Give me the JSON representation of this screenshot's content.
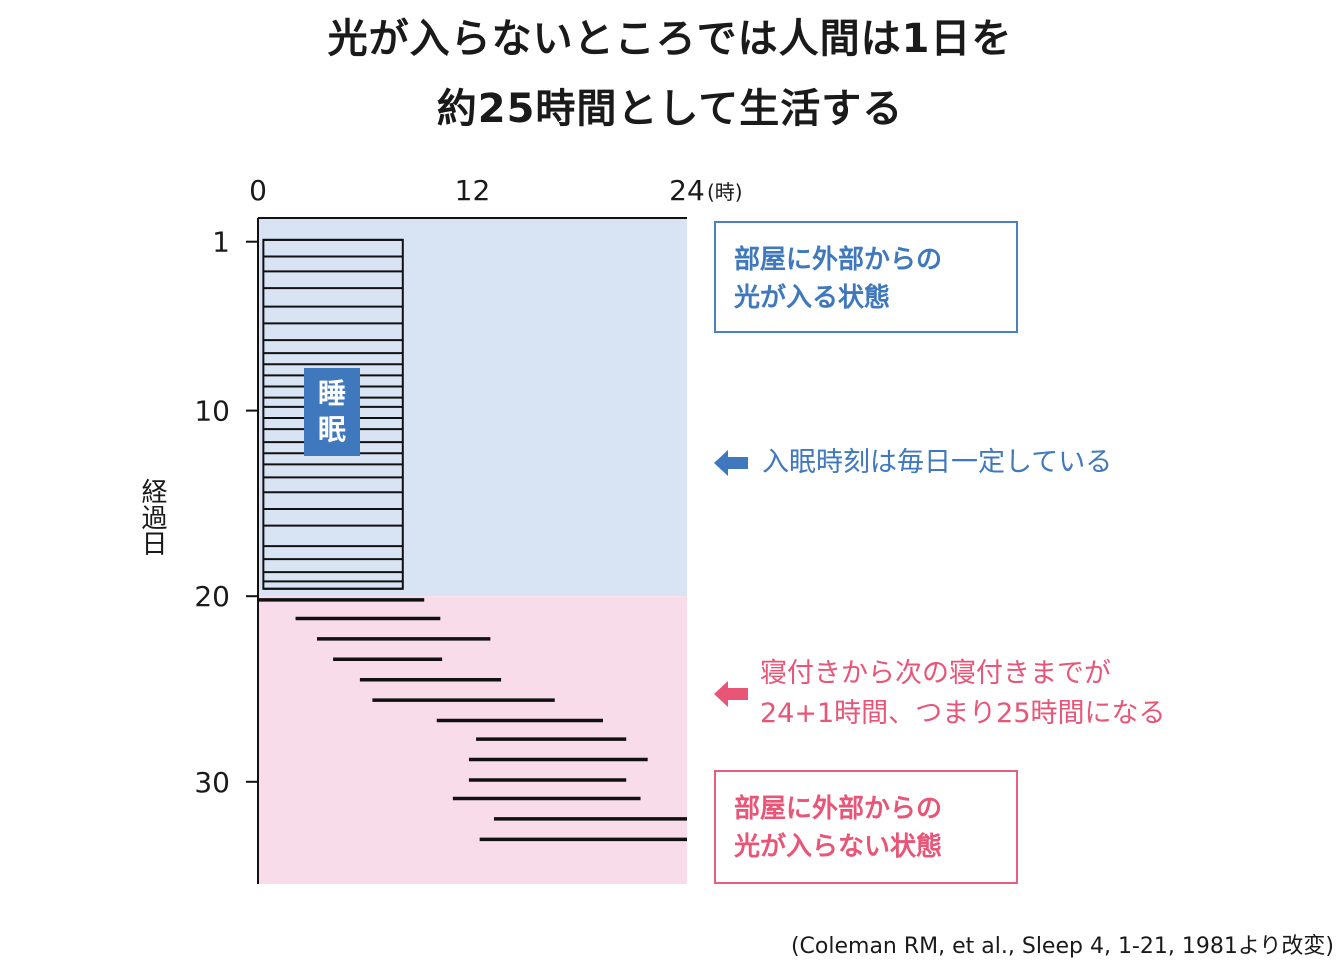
{
  "title": {
    "line1": "光が入らないところでは人間は1日を",
    "line2": "約25時間として生活する"
  },
  "colors": {
    "blue": "#3f78bd",
    "blue_bg": "#d8e4f3",
    "pink": "#e85577",
    "pink_bg": "#f9dcea",
    "line": "#111111"
  },
  "chart_data": {
    "type": "actogram",
    "x_unit": "(時)",
    "x_ticks": [
      "0",
      "12",
      "24"
    ],
    "xlim": [
      0,
      24
    ],
    "ylabel": "経過日",
    "y_ticks": [
      "1",
      "10",
      "20",
      "30"
    ],
    "ylim": [
      0,
      34.5
    ],
    "regions": [
      {
        "days": [
          0,
          20
        ],
        "condition": "部屋に外部からの光が入る状態"
      },
      {
        "days": [
          20,
          34.5
        ],
        "condition": "部屋に外部からの光が入らない状態"
      }
    ],
    "sleep_label": [
      "睡",
      "眠"
    ],
    "sleep_light": {
      "start": 0.3,
      "end": 8.1,
      "day_first": 0.8,
      "day_last": 19.6
    },
    "sleep_light_rows": [
      0.8,
      1.7,
      2.5,
      3.4,
      4.4,
      5.3,
      6.2,
      6.9,
      7.5,
      8.1,
      8.7,
      9.3,
      9.8,
      10.4,
      11.0,
      11.7,
      12.3,
      12.9,
      13.6,
      14.4,
      15.3,
      16.2,
      17.3,
      18.0,
      18.7,
      19.2,
      19.6
    ],
    "sleep_dark": [
      {
        "day": 20.2,
        "start": 0.0,
        "end": 9.3
      },
      {
        "day": 21.2,
        "start": 2.1,
        "end": 10.2
      },
      {
        "day": 22.3,
        "start": 3.3,
        "end": 13.0
      },
      {
        "day": 23.4,
        "start": 4.2,
        "end": 10.3
      },
      {
        "day": 24.5,
        "start": 5.7,
        "end": 13.6
      },
      {
        "day": 25.6,
        "start": 6.4,
        "end": 16.6
      },
      {
        "day": 26.7,
        "start": 10.0,
        "end": 19.3
      },
      {
        "day": 27.7,
        "start": 12.2,
        "end": 20.6
      },
      {
        "day": 28.8,
        "start": 11.8,
        "end": 21.8
      },
      {
        "day": 29.9,
        "start": 11.8,
        "end": 20.6
      },
      {
        "day": 30.9,
        "start": 10.9,
        "end": 21.4
      },
      {
        "day": 32.0,
        "start": 13.2,
        "end": 24.0
      },
      {
        "day": 33.1,
        "start": 12.4,
        "end": 24.0
      }
    ]
  },
  "annotations": {
    "blue_box": [
      "部屋に外部からの",
      "光が入る状態"
    ],
    "blue_note": "入眠時刻は毎日一定している",
    "pink_note": [
      "寝付きから次の寝付きまでが",
      "24+1時間、つまり25時間になる"
    ],
    "pink_box": [
      "部屋に外部からの",
      "光が入らない状態"
    ]
  },
  "source": "(Coleman RM, et al., Sleep 4, 1-21, 1981より改変)"
}
